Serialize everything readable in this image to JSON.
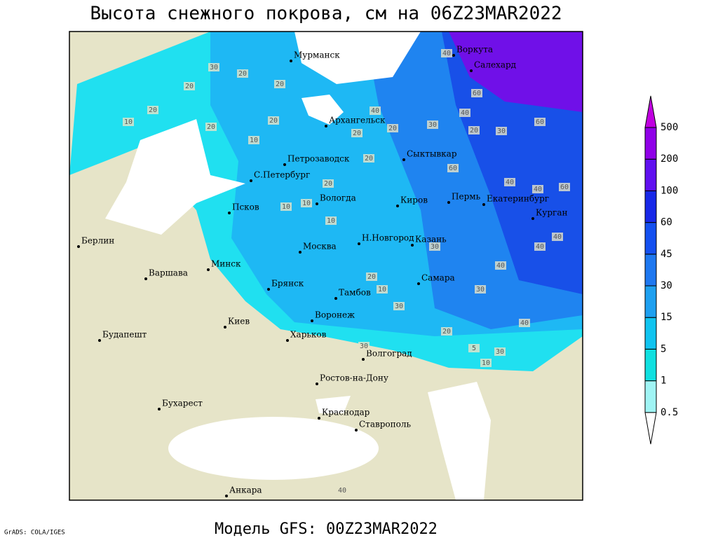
{
  "title": "Высота снежного покрова, см на 06Z23MAR2022",
  "footer": "Модель GFS: 00Z23MAR2022",
  "credit": "GrADS: COLA/IGES",
  "cities": [
    "Мурманск",
    "Воркута",
    "Салехард",
    "Архангельск",
    "Петрозаводск",
    "Сыктывкар",
    "С.Петербург",
    "Вологда",
    "Киров",
    "Пермь",
    "Екатеринбург",
    "Курган",
    "Псков",
    "Берлин",
    "Варшава",
    "Минск",
    "Москва",
    "Н.Новгород",
    "Казань",
    "Самара",
    "Брянск",
    "Тамбов",
    "Воронеж",
    "Киев",
    "Будапешт",
    "Харьков",
    "Волгоград",
    "Ростов-на-Дону",
    "Бухарест",
    "Краснодар",
    "Ставрополь",
    "Анкара"
  ],
  "contour_labels": [
    30,
    20,
    20,
    20,
    20,
    10,
    20,
    10,
    20,
    20,
    40,
    20,
    30,
    40,
    60,
    60,
    60,
    40,
    30,
    20,
    10,
    10,
    20,
    20,
    40,
    60,
    40,
    40,
    40,
    30,
    10,
    10,
    20,
    30,
    30,
    40,
    40,
    20,
    5,
    30,
    10,
    30,
    40
  ],
  "legend": {
    "levels": [
      0.5,
      1,
      5,
      15,
      30,
      45,
      60,
      100,
      200,
      500
    ],
    "colors": [
      "#ffffff",
      "#a0f4f4",
      "#10e0e0",
      "#10c4f0",
      "#1ea0f0",
      "#1e78f0",
      "#1450f0",
      "#1828e8",
      "#6010f0",
      "#9000e8",
      "#c000e0"
    ]
  }
}
